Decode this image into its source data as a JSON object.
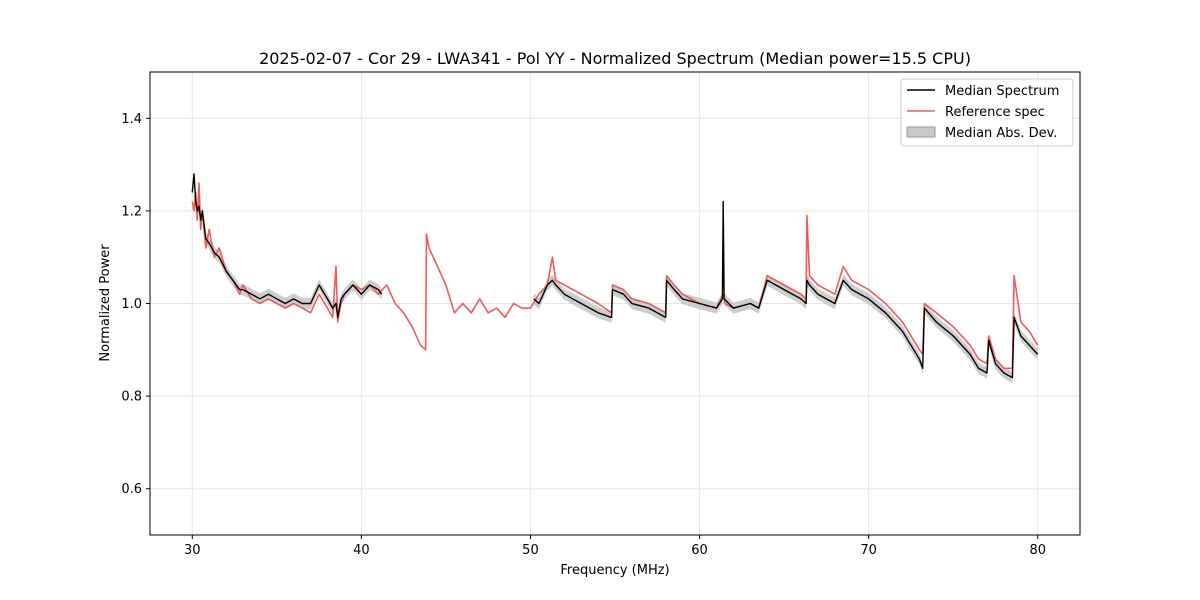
{
  "chart_data": {
    "type": "line",
    "title": "2025-02-07 - Cor 29 - LWA341 - Pol YY - Normalized Spectrum (Median power=15.5 CPU)",
    "xlabel": "Frequency (MHz)",
    "ylabel": "Normalized Power",
    "xlim": [
      27.5,
      82.5
    ],
    "ylim": [
      0.5,
      1.5
    ],
    "xticks": [
      30,
      40,
      50,
      60,
      70,
      80
    ],
    "yticks": [
      0.6,
      0.8,
      1.0,
      1.2,
      1.4
    ],
    "xtick_labels": [
      "30",
      "40",
      "50",
      "60",
      "70",
      "80"
    ],
    "ytick_labels": [
      "0.6",
      "0.8",
      "1.0",
      "1.2",
      "1.4"
    ],
    "grid": true,
    "legend_position": "top-right",
    "legend": [
      "Median Spectrum",
      "Reference spec",
      "Median Abs. Dev."
    ],
    "colors": {
      "median": "#000000",
      "reference": "#f05a5a",
      "mad_fill": "#c8c8c8",
      "mad_edge": "#9a9a9a",
      "grid": "#e6e6e6"
    },
    "series": [
      {
        "name": "Reference spec",
        "x": [
          30.0,
          30.1,
          30.2,
          30.3,
          30.4,
          30.5,
          30.6,
          30.8,
          31.0,
          31.3,
          31.6,
          32.0,
          32.4,
          32.8,
          33.0,
          33.5,
          34.0,
          34.5,
          35.0,
          35.5,
          36.0,
          36.5,
          37.0,
          37.5,
          38.0,
          38.3,
          38.5,
          38.6,
          38.8,
          39.0,
          39.5,
          40.0,
          40.5,
          41.0,
          41.5,
          42.0,
          42.5,
          43.0,
          43.5,
          43.8,
          43.85,
          44.0,
          44.5,
          45.0,
          45.5,
          46.0,
          46.5,
          47.0,
          47.5,
          48.0,
          48.5,
          49.0,
          49.5,
          50.0,
          50.5,
          51.0,
          51.3,
          51.5,
          52.0,
          53.0,
          54.0,
          54.8,
          54.85,
          55.5,
          56.0,
          57.0,
          58.0,
          58.05,
          58.5,
          59.0,
          60.0,
          61.0,
          61.4,
          61.5,
          62.0,
          63.0,
          63.5,
          64.0,
          65.0,
          66.0,
          66.3,
          66.35,
          66.5,
          67.0,
          68.0,
          68.5,
          69.0,
          70.0,
          71.0,
          72.0,
          72.5,
          73.0,
          73.2,
          73.3,
          74.0,
          75.0,
          76.0,
          76.5,
          77.0,
          77.1,
          77.5,
          78.0,
          78.5,
          78.6,
          79.0,
          79.5,
          80.0
        ],
        "y": [
          1.22,
          1.2,
          1.24,
          1.18,
          1.26,
          1.16,
          1.2,
          1.12,
          1.16,
          1.1,
          1.12,
          1.07,
          1.05,
          1.02,
          1.04,
          1.01,
          1.0,
          1.01,
          1.0,
          0.99,
          1.0,
          0.99,
          0.98,
          1.02,
          0.99,
          0.97,
          1.08,
          0.96,
          1.0,
          1.02,
          1.04,
          1.03,
          1.04,
          1.02,
          1.04,
          1.0,
          0.98,
          0.95,
          0.91,
          0.9,
          1.15,
          1.12,
          1.08,
          1.04,
          0.98,
          1.0,
          0.98,
          1.01,
          0.98,
          0.99,
          0.97,
          1.0,
          0.99,
          0.99,
          1.02,
          1.04,
          1.1,
          1.05,
          1.04,
          1.02,
          1.0,
          0.98,
          1.04,
          1.03,
          1.01,
          1.0,
          0.98,
          1.06,
          1.04,
          1.02,
          1.0,
          0.99,
          1.02,
          1.0,
          0.99,
          1.0,
          0.99,
          1.06,
          1.04,
          1.02,
          1.01,
          1.19,
          1.06,
          1.04,
          1.02,
          1.08,
          1.05,
          1.03,
          1.0,
          0.96,
          0.93,
          0.9,
          0.89,
          1.0,
          0.98,
          0.95,
          0.91,
          0.88,
          0.87,
          0.93,
          0.88,
          0.86,
          0.86,
          1.06,
          0.96,
          0.94,
          0.91
        ]
      },
      {
        "name": "Median Spectrum",
        "x": [
          30.0,
          30.1,
          30.2,
          30.3,
          30.4,
          30.5,
          30.6,
          30.8,
          31.0,
          31.3,
          31.6,
          32.0,
          32.4,
          32.8,
          33.0,
          33.5,
          34.0,
          34.5,
          35.0,
          35.5,
          36.0,
          36.5,
          37.0,
          37.5,
          38.0,
          38.3,
          38.5,
          38.6,
          38.8,
          39.0,
          39.5,
          40.0,
          40.5,
          41.0,
          41.2,
          null,
          50.2,
          50.5,
          51.0,
          51.3,
          51.5,
          52.0,
          53.0,
          54.0,
          54.8,
          54.85,
          55.5,
          56.0,
          57.0,
          58.0,
          58.05,
          58.5,
          59.0,
          60.0,
          61.0,
          61.35,
          61.4,
          61.45,
          62.0,
          63.0,
          63.5,
          64.0,
          65.0,
          66.0,
          66.3,
          66.35,
          66.5,
          67.0,
          68.0,
          68.5,
          69.0,
          70.0,
          71.0,
          72.0,
          72.5,
          73.0,
          73.2,
          73.3,
          74.0,
          75.0,
          76.0,
          76.5,
          77.0,
          77.1,
          77.5,
          78.0,
          78.5,
          78.6,
          79.0,
          79.5,
          80.0
        ],
        "y": [
          1.24,
          1.28,
          1.22,
          1.2,
          1.21,
          1.18,
          1.2,
          1.14,
          1.13,
          1.11,
          1.1,
          1.07,
          1.05,
          1.03,
          1.03,
          1.02,
          1.01,
          1.02,
          1.01,
          1.0,
          1.01,
          1.0,
          1.0,
          1.04,
          1.01,
          0.99,
          1.0,
          0.97,
          1.01,
          1.02,
          1.04,
          1.02,
          1.04,
          1.03,
          1.02,
          null,
          1.01,
          1.0,
          1.04,
          1.05,
          1.04,
          1.02,
          1.0,
          0.98,
          0.97,
          1.03,
          1.02,
          1.0,
          0.99,
          0.97,
          1.05,
          1.03,
          1.01,
          1.0,
          0.99,
          1.01,
          1.22,
          1.01,
          0.99,
          1.0,
          0.99,
          1.05,
          1.03,
          1.01,
          1.0,
          1.05,
          1.04,
          1.02,
          1.0,
          1.05,
          1.03,
          1.01,
          0.98,
          0.94,
          0.91,
          0.88,
          0.86,
          0.99,
          0.96,
          0.93,
          0.89,
          0.86,
          0.85,
          0.92,
          0.87,
          0.85,
          0.84,
          0.97,
          0.93,
          0.91,
          0.89
        ]
      }
    ],
    "mad_band": {
      "name": "Median Abs. Dev.",
      "half_width": 0.012
    }
  }
}
